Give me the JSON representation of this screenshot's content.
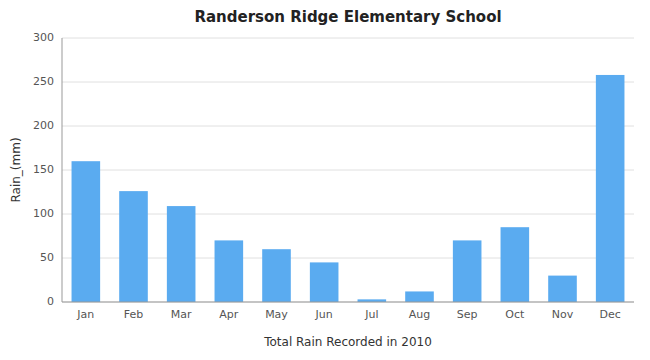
{
  "chart_data": {
    "type": "bar",
    "title": "Randerson Ridge Elementary School",
    "xlabel": "Total Rain Recorded in 2010",
    "ylabel": "Rain_(mm)",
    "categories": [
      "Jan",
      "Feb",
      "Mar",
      "Apr",
      "May",
      "Jun",
      "Jul",
      "Aug",
      "Sep",
      "Oct",
      "Nov",
      "Dec"
    ],
    "values": [
      160,
      126,
      109,
      70,
      60,
      45,
      3,
      12,
      70,
      85,
      30,
      258
    ],
    "color": "#5aabf0",
    "ylim": [
      0,
      300
    ],
    "yticks": [
      0,
      50,
      100,
      150,
      200,
      250,
      300
    ],
    "grid": true
  }
}
